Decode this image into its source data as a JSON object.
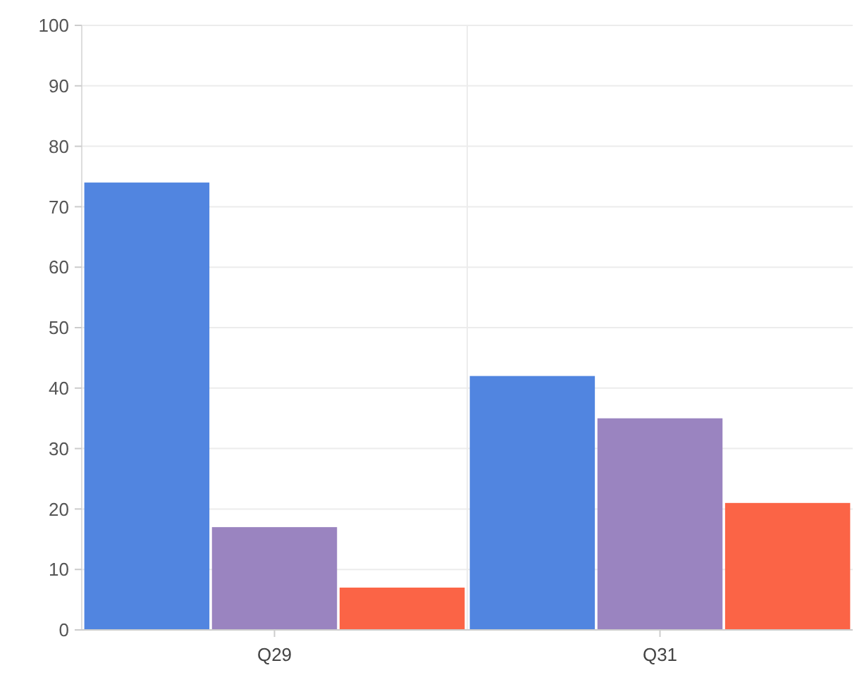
{
  "chart_data": {
    "type": "bar",
    "categories": [
      "Q29",
      "Q31"
    ],
    "series": [
      {
        "color": "#5185e0",
        "values": [
          74,
          42
        ]
      },
      {
        "color": "#9a84c0",
        "values": [
          17,
          35
        ]
      },
      {
        "color": "#fb6446",
        "values": [
          7,
          21
        ]
      }
    ],
    "ylim": [
      0,
      100
    ],
    "yticks": [
      0,
      10,
      20,
      30,
      40,
      50,
      60,
      70,
      80,
      90,
      100
    ],
    "grid": true
  }
}
